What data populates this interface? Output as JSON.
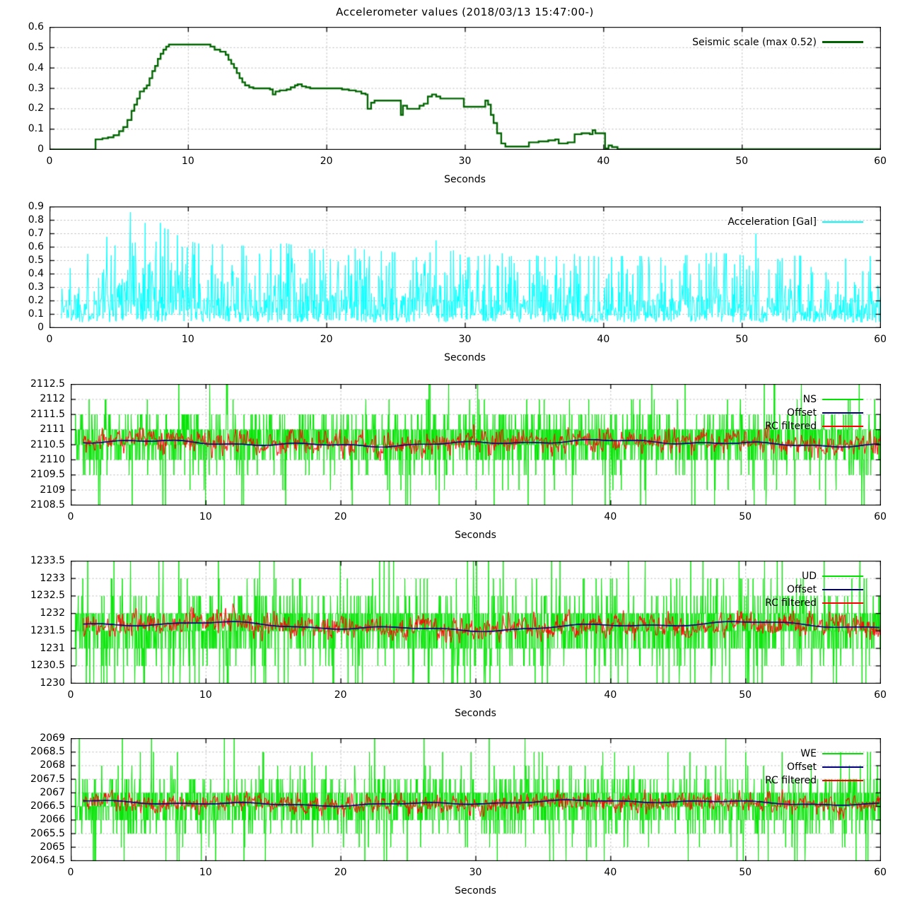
{
  "title": "Accelerometer values (2018/03/13 15:47:00-)",
  "xlabel": "Seconds",
  "colors": {
    "seismic": "#006400",
    "acceleration": "#00ffff",
    "raw_green": "#00e400",
    "offset": "#000080",
    "rc_filtered": "#ff0000",
    "grid": "#b4b4b4",
    "border": "#000000",
    "background": "#ffffff",
    "text": "#000000"
  },
  "chart_data": [
    {
      "type": "line",
      "name": "seismic-scale",
      "xlabel": "Seconds",
      "x_range": [
        0,
        60
      ],
      "x_ticks": [
        0,
        10,
        20,
        30,
        40,
        50,
        60
      ],
      "x_tick_labels": [
        "0",
        "10",
        "20",
        "30",
        "40",
        "50",
        "60"
      ],
      "y_range": [
        0,
        0.6
      ],
      "y_ticks": [
        0,
        0.1,
        0.2,
        0.3,
        0.4,
        0.5,
        0.6
      ],
      "y_tick_labels": [
        "0",
        "0.1",
        "0.2",
        "0.3",
        "0.4",
        "0.5",
        "0.6"
      ],
      "grid": true,
      "legend_position": "top-right",
      "legend": [
        {
          "label": "Seismic scale (max 0.52)",
          "color": "#006400",
          "thickness": 3
        }
      ],
      "series": [
        {
          "name": "Seismic scale (max 0.52)",
          "style": "steps",
          "color": "#006400",
          "line_width": 2.4,
          "max_value": 0.52,
          "points": [
            [
              0,
              0
            ],
            [
              3.3,
              0.05
            ],
            [
              3.8,
              0.055
            ],
            [
              4.2,
              0.06
            ],
            [
              4.6,
              0.07
            ],
            [
              5.0,
              0.09
            ],
            [
              5.3,
              0.11
            ],
            [
              5.6,
              0.145
            ],
            [
              5.9,
              0.19
            ],
            [
              6.1,
              0.22
            ],
            [
              6.3,
              0.25
            ],
            [
              6.5,
              0.285
            ],
            [
              6.8,
              0.3
            ],
            [
              7.0,
              0.315
            ],
            [
              7.2,
              0.35
            ],
            [
              7.4,
              0.385
            ],
            [
              7.6,
              0.41
            ],
            [
              7.8,
              0.445
            ],
            [
              8.0,
              0.47
            ],
            [
              8.2,
              0.49
            ],
            [
              8.4,
              0.505
            ],
            [
              8.6,
              0.515
            ],
            [
              11.3,
              0.515
            ],
            [
              11.6,
              0.505
            ],
            [
              11.9,
              0.49
            ],
            [
              12.3,
              0.48
            ],
            [
              12.7,
              0.465
            ],
            [
              12.9,
              0.44
            ],
            [
              13.1,
              0.42
            ],
            [
              13.3,
              0.4
            ],
            [
              13.5,
              0.375
            ],
            [
              13.7,
              0.35
            ],
            [
              13.9,
              0.33
            ],
            [
              14.1,
              0.315
            ],
            [
              14.4,
              0.305
            ],
            [
              14.7,
              0.3
            ],
            [
              15.9,
              0.295
            ],
            [
              16.1,
              0.27
            ],
            [
              16.3,
              0.285
            ],
            [
              16.6,
              0.29
            ],
            [
              16.9,
              0.29
            ],
            [
              17.1,
              0.295
            ],
            [
              17.4,
              0.305
            ],
            [
              17.7,
              0.315
            ],
            [
              17.9,
              0.32
            ],
            [
              18.2,
              0.31
            ],
            [
              18.5,
              0.305
            ],
            [
              18.8,
              0.3
            ],
            [
              20.6,
              0.3
            ],
            [
              21.1,
              0.295
            ],
            [
              21.6,
              0.29
            ],
            [
              22.1,
              0.285
            ],
            [
              22.5,
              0.275
            ],
            [
              22.8,
              0.27
            ],
            [
              22.95,
              0.2
            ],
            [
              23.2,
              0.23
            ],
            [
              23.45,
              0.24
            ],
            [
              25.2,
              0.24
            ],
            [
              25.35,
              0.17
            ],
            [
              25.5,
              0.215
            ],
            [
              25.8,
              0.2
            ],
            [
              26.4,
              0.2
            ],
            [
              26.7,
              0.215
            ],
            [
              27.0,
              0.225
            ],
            [
              27.3,
              0.26
            ],
            [
              27.6,
              0.27
            ],
            [
              27.9,
              0.26
            ],
            [
              28.2,
              0.25
            ],
            [
              29.6,
              0.25
            ],
            [
              29.9,
              0.21
            ],
            [
              31.3,
              0.21
            ],
            [
              31.45,
              0.24
            ],
            [
              31.65,
              0.22
            ],
            [
              31.85,
              0.17
            ],
            [
              32.05,
              0.13
            ],
            [
              32.3,
              0.08
            ],
            [
              32.6,
              0.03
            ],
            [
              32.9,
              0.015
            ],
            [
              34.4,
              0.015
            ],
            [
              34.6,
              0.035
            ],
            [
              35.3,
              0.04
            ],
            [
              36.0,
              0.045
            ],
            [
              36.5,
              0.05
            ],
            [
              36.75,
              0.03
            ],
            [
              37.4,
              0.035
            ],
            [
              37.9,
              0.075
            ],
            [
              38.4,
              0.08
            ],
            [
              39.0,
              0.075
            ],
            [
              39.2,
              0.095
            ],
            [
              39.4,
              0.08
            ],
            [
              39.95,
              0.08
            ],
            [
              40.1,
              0.005
            ],
            [
              40.35,
              0.02
            ],
            [
              40.6,
              0.012
            ],
            [
              41.0,
              0.002
            ],
            [
              60,
              0.002
            ]
          ]
        }
      ]
    },
    {
      "type": "line",
      "name": "acceleration",
      "xlabel": "Seconds",
      "x_range": [
        0,
        60
      ],
      "x_ticks": [
        0,
        10,
        20,
        30,
        40,
        50,
        60
      ],
      "x_tick_labels": [
        "0",
        "10",
        "20",
        "30",
        "40",
        "50",
        "60"
      ],
      "y_range": [
        0,
        0.9
      ],
      "y_ticks": [
        0,
        0.1,
        0.2,
        0.3,
        0.4,
        0.5,
        0.6,
        0.7,
        0.8,
        0.9
      ],
      "y_tick_labels": [
        "0",
        "0.1",
        "0.2",
        "0.3",
        "0.4",
        "0.5",
        "0.6",
        "0.7",
        "0.8",
        "0.9"
      ],
      "grid": true,
      "legend_position": "top-right",
      "legend": [
        {
          "label": "Acceleration [Gal]",
          "color": "#00ffff",
          "thickness": 2
        }
      ],
      "series": [
        {
          "name": "Acceleration [Gal]",
          "style": "noise-line",
          "color": "#00ffff",
          "line_width": 1,
          "seed": 1337,
          "samples": 1500,
          "start": 0.8,
          "base": 0.04,
          "scale": 0.3,
          "clamp_min": 0.015,
          "envelope": [
            [
              0.8,
              0.5
            ],
            [
              2,
              0.52
            ],
            [
              3,
              0.56
            ],
            [
              4,
              0.66
            ],
            [
              5,
              0.8
            ],
            [
              5.8,
              0.9
            ],
            [
              6.5,
              0.82
            ],
            [
              7.5,
              0.8
            ],
            [
              8.5,
              0.76
            ],
            [
              9.5,
              0.66
            ],
            [
              11,
              0.62
            ],
            [
              13,
              0.62
            ],
            [
              15,
              0.6
            ],
            [
              17,
              0.63
            ],
            [
              19,
              0.58
            ],
            [
              21,
              0.6
            ],
            [
              23,
              0.58
            ],
            [
              25,
              0.56
            ],
            [
              27,
              0.6
            ],
            [
              28.5,
              0.62
            ],
            [
              30,
              0.52
            ],
            [
              32,
              0.55
            ],
            [
              34,
              0.56
            ],
            [
              36,
              0.52
            ],
            [
              38,
              0.56
            ],
            [
              40,
              0.52
            ],
            [
              42,
              0.54
            ],
            [
              44,
              0.52
            ],
            [
              46,
              0.54
            ],
            [
              48,
              0.56
            ],
            [
              50,
              0.54
            ],
            [
              52,
              0.5
            ],
            [
              54,
              0.54
            ],
            [
              56,
              0.5
            ],
            [
              58,
              0.52
            ],
            [
              60,
              0.54
            ]
          ],
          "peaks": [
            [
              5.8,
              0.86
            ],
            [
              6.9,
              0.78
            ],
            [
              8.3,
              0.74
            ],
            [
              27.9,
              0.65
            ],
            [
              51.0,
              0.7
            ]
          ]
        }
      ]
    },
    {
      "type": "line",
      "name": "ns-channel",
      "xlabel": "Seconds",
      "x_range": [
        0,
        60
      ],
      "x_ticks": [
        0,
        10,
        20,
        30,
        40,
        50,
        60
      ],
      "x_tick_labels": [
        "0",
        "10",
        "20",
        "30",
        "40",
        "50",
        "60"
      ],
      "y_range": [
        2108.5,
        2112.5
      ],
      "y_ticks": [
        2108.5,
        2109,
        2109.5,
        2110,
        2110.5,
        2111,
        2111.5,
        2112,
        2112.5
      ],
      "y_tick_labels": [
        "2108.5",
        "2109",
        "2109.5",
        "2110",
        "2110.5",
        "2111",
        "2111.5",
        "2112",
        "2112.5"
      ],
      "grid": true,
      "legend_position": "top-right",
      "legend": [
        {
          "label": "NS",
          "color": "#00e400",
          "thickness": 2
        },
        {
          "label": "Offset",
          "color": "#000080",
          "thickness": 2
        },
        {
          "label": "RC filtered",
          "color": "#ff0000",
          "thickness": 2
        }
      ],
      "series": [
        {
          "name": "NS",
          "style": "quantized-noise",
          "color": "#00e400",
          "line_width": 1,
          "seed": 2001,
          "samples": 2300,
          "start": 0.3,
          "center": 2110.65,
          "sd": 0.5,
          "step": 0.5,
          "p_up": 0.012,
          "up_mag": [
            0.8,
            1.2
          ],
          "p_down": 0.04,
          "down_mag": [
            0.8,
            1.6
          ],
          "clip": [
            2108.5,
            2112.5
          ]
        },
        {
          "name": "Offset",
          "style": "slow-line",
          "color": "#000080",
          "line_width": 1.4,
          "start": 0.9,
          "center": 2110.55,
          "amps": [
            0.07,
            0.04,
            0.025
          ],
          "periods": [
            37,
            11,
            4.3
          ],
          "phases": [
            1.2,
            4.0,
            2.5
          ]
        },
        {
          "name": "RC filtered",
          "style": "ar-noise",
          "color": "#ff0000",
          "line_width": 1,
          "seed": 2002,
          "samples": 1300,
          "start": 0.9,
          "sd": 0.11,
          "ar": 0.5,
          "gain": 1.5,
          "follow": 1
        }
      ]
    },
    {
      "type": "line",
      "name": "ud-channel",
      "xlabel": "Seconds",
      "x_range": [
        0,
        60
      ],
      "x_ticks": [
        0,
        10,
        20,
        30,
        40,
        50,
        60
      ],
      "x_tick_labels": [
        "0",
        "10",
        "20",
        "30",
        "40",
        "50",
        "60"
      ],
      "y_range": [
        1230,
        1233.5
      ],
      "y_ticks": [
        1230,
        1230.5,
        1231,
        1231.5,
        1232,
        1232.5,
        1233,
        1233.5
      ],
      "y_tick_labels": [
        "1230",
        "1230.5",
        "1231",
        "1231.5",
        "1232",
        "1232.5",
        "1233",
        "1233.5"
      ],
      "grid": true,
      "legend_position": "top-right",
      "legend": [
        {
          "label": "UD",
          "color": "#00e400",
          "thickness": 2
        },
        {
          "label": "Offset",
          "color": "#000080",
          "thickness": 2
        },
        {
          "label": "RC filtered",
          "color": "#ff0000",
          "thickness": 2
        }
      ],
      "series": [
        {
          "name": "UD",
          "style": "quantized-noise",
          "color": "#00e400",
          "line_width": 1,
          "seed": 3001,
          "samples": 2300,
          "start": 0.3,
          "center": 1231.6,
          "sd": 0.5,
          "step": 0.5,
          "p_up": 0.03,
          "up_mag": [
            0.8,
            1.0
          ],
          "p_down": 0.045,
          "down_mag": [
            0.8,
            1.4
          ],
          "clip": [
            1230,
            1233.5
          ]
        },
        {
          "name": "Offset",
          "style": "slow-line",
          "color": "#000080",
          "line_width": 1.4,
          "start": 0.9,
          "center": 1231.63,
          "amps": [
            0.09,
            0.05,
            0.02
          ],
          "periods": [
            41,
            13,
            5.1
          ],
          "phases": [
            0.4,
            2.2,
            5.0
          ]
        },
        {
          "name": "RC filtered",
          "style": "ar-noise",
          "color": "#ff0000",
          "line_width": 1,
          "seed": 3002,
          "samples": 1300,
          "start": 0.9,
          "sd": 0.1,
          "ar": 0.5,
          "gain": 1.5,
          "follow": 1
        }
      ]
    },
    {
      "type": "line",
      "name": "we-channel",
      "xlabel": "Seconds",
      "x_range": [
        0,
        60
      ],
      "x_ticks": [
        0,
        10,
        20,
        30,
        40,
        50,
        60
      ],
      "x_tick_labels": [
        "0",
        "10",
        "20",
        "30",
        "40",
        "50",
        "60"
      ],
      "y_range": [
        2064.5,
        2069
      ],
      "y_ticks": [
        2064.5,
        2065,
        2065.5,
        2066,
        2066.5,
        2067,
        2067.5,
        2068,
        2068.5,
        2069
      ],
      "y_tick_labels": [
        "2064.5",
        "2065",
        "2065.5",
        "2066",
        "2066.5",
        "2067",
        "2067.5",
        "2068",
        "2068.5",
        "2069"
      ],
      "grid": true,
      "legend_position": "top-right",
      "legend": [
        {
          "label": "WE",
          "color": "#00e400",
          "thickness": 2
        },
        {
          "label": "Offset",
          "color": "#000080",
          "thickness": 2
        },
        {
          "label": "RC filtered",
          "color": "#ff0000",
          "thickness": 2
        }
      ],
      "series": [
        {
          "name": "WE",
          "style": "quantized-noise",
          "color": "#00e400",
          "line_width": 1,
          "seed": 4001,
          "samples": 2300,
          "start": 0.3,
          "center": 2066.6,
          "sd": 0.5,
          "step": 0.5,
          "p_up": 0.035,
          "up_mag": [
            0.8,
            1.4
          ],
          "p_down": 0.04,
          "down_mag": [
            0.8,
            1.6
          ],
          "clip": [
            2064.5,
            2069
          ]
        },
        {
          "name": "Offset",
          "style": "slow-line",
          "color": "#000080",
          "line_width": 1.4,
          "start": 0.9,
          "center": 2066.63,
          "amps": [
            0.07,
            0.04,
            0.02
          ],
          "periods": [
            44,
            12,
            4.7
          ],
          "phases": [
            2.0,
            1.0,
            3.3
          ]
        },
        {
          "name": "RC filtered",
          "style": "ar-noise",
          "color": "#ff0000",
          "line_width": 1,
          "seed": 4002,
          "samples": 1300,
          "start": 0.9,
          "sd": 0.1,
          "ar": 0.5,
          "gain": 1.5,
          "follow": 1
        }
      ]
    }
  ]
}
